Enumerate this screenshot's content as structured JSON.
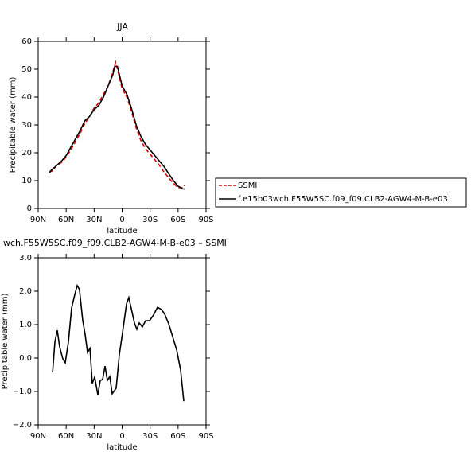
{
  "chart_data": [
    {
      "type": "line",
      "title": "JJA",
      "xlabel": "latitude",
      "ylabel": "Precipitable water (mm)",
      "xlim": [
        90,
        -90
      ],
      "xticks": [
        {
          "value": 90,
          "label": "90N"
        },
        {
          "value": 60,
          "label": "60N"
        },
        {
          "value": 30,
          "label": "30N"
        },
        0,
        {
          "value": -30,
          "label": "30S"
        },
        {
          "value": -60,
          "label": "60S"
        },
        {
          "value": -90,
          "label": "90S"
        }
      ],
      "ylim": [
        0,
        60
      ],
      "yticks": [
        0,
        10,
        20,
        30,
        40,
        50,
        60
      ],
      "series": [
        {
          "name": "SSMI",
          "color": "#dd0000",
          "dash": "dashed",
          "x": [
            78,
            75,
            70,
            65,
            60,
            55,
            50,
            45,
            40,
            35,
            30,
            25,
            20,
            15,
            10,
            7,
            5,
            0,
            -5,
            -10,
            -15,
            -20,
            -25,
            -30,
            -35,
            -40,
            -45,
            -50,
            -55,
            -60,
            -65,
            -67
          ],
          "values": [
            13,
            13.5,
            15.5,
            16.5,
            18.5,
            21,
            24,
            27,
            30.5,
            33,
            36,
            38,
            41,
            44,
            49,
            52.5,
            50,
            43,
            40,
            35,
            29,
            24.5,
            21.5,
            19.5,
            17.5,
            15.5,
            13,
            11,
            9,
            7.5,
            7.5,
            8.5
          ]
        },
        {
          "name": "f.e15b03wch.F55W5SC.f09_f09.CLB2-AGW4-M-B-e03",
          "color": "#000000",
          "dash": "solid",
          "x": [
            78,
            75,
            70,
            65,
            60,
            55,
            50,
            45,
            40,
            35,
            30,
            25,
            20,
            15,
            10,
            8,
            5,
            0,
            -5,
            -10,
            -15,
            -20,
            -25,
            -30,
            -35,
            -40,
            -45,
            -50,
            -55,
            -60,
            -65,
            -67
          ],
          "values": [
            13,
            14,
            15.5,
            17,
            19,
            22,
            25,
            28,
            31.5,
            33,
            35.5,
            37,
            40,
            44,
            48,
            51,
            51,
            44,
            41,
            36,
            30,
            26,
            23,
            21,
            19,
            17,
            15,
            12.5,
            10,
            8,
            7,
            7
          ]
        }
      ]
    },
    {
      "type": "line",
      "title": "wch.F55W5SC.f09_f09.CLB2-AGW4-M-B-e03 – SSMI",
      "xlabel": "latitude",
      "ylabel": "Precipitable water (mm)",
      "xlim": [
        90,
        -90
      ],
      "xticks": [
        {
          "value": 90,
          "label": "90N"
        },
        {
          "value": 60,
          "label": "60N"
        },
        {
          "value": 30,
          "label": "30N"
        },
        0,
        {
          "value": -30,
          "label": "30S"
        },
        {
          "value": -60,
          "label": "60S"
        },
        {
          "value": -90,
          "label": "90S"
        }
      ],
      "ylim": [
        -2,
        3
      ],
      "yticks": [
        {
          "value": -2,
          "label": "−2.0"
        },
        {
          "value": -1,
          "label": "−1.0"
        },
        {
          "value": 0,
          "label": "0.0"
        },
        {
          "value": 1,
          "label": "1.0"
        },
        {
          "value": 2,
          "label": "2.0"
        },
        {
          "value": 3,
          "label": "3.0"
        }
      ],
      "series": [
        {
          "color": "#000000",
          "dash": "solid",
          "x": [
            74.6,
            72.1,
            69.5,
            67,
            63.6,
            61,
            57.6,
            54.2,
            50.8,
            48.2,
            45.7,
            42.3,
            39.7,
            37.1,
            34.5,
            32,
            29.4,
            26,
            23.5,
            20.9,
            18.3,
            15.8,
            13.2,
            10.7,
            6.4,
            3,
            -0.4,
            -4.7,
            -7.2,
            -9.8,
            -13.2,
            -15.8,
            -18.3,
            -21.7,
            -25.2,
            -29.4,
            -33.7,
            -38,
            -42.3,
            -45.7,
            -50,
            -54.2,
            -58.5,
            -62.7,
            -66.1
          ],
          "values": [
            -0.43,
            0.48,
            0.83,
            0.33,
            -0.02,
            -0.14,
            0.48,
            1.5,
            1.9,
            2.17,
            2.05,
            1.14,
            0.71,
            0.17,
            0.29,
            -0.76,
            -0.57,
            -1.1,
            -0.67,
            -0.64,
            -0.24,
            -0.67,
            -0.55,
            -1.07,
            -0.9,
            0.1,
            0.76,
            1.62,
            1.81,
            1.48,
            1.05,
            0.86,
            1.05,
            0.93,
            1.12,
            1.12,
            1.29,
            1.52,
            1.45,
            1.31,
            1.02,
            0.64,
            0.24,
            -0.36,
            -1.29
          ]
        }
      ]
    }
  ]
}
